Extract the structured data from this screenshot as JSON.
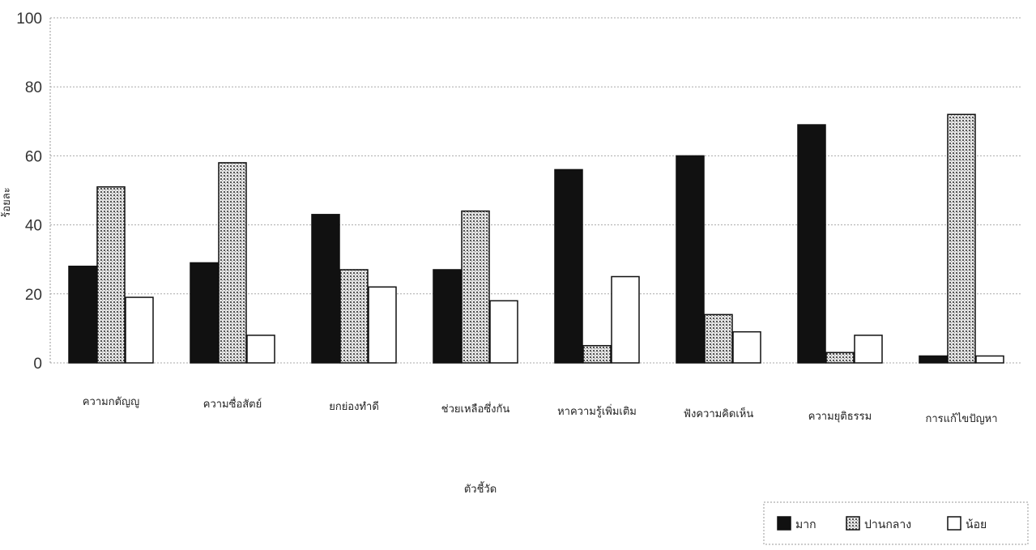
{
  "chart_data": {
    "type": "bar",
    "ylabel": "ร้อยละ",
    "xlabel": "ตัวชี้วัด",
    "ylim": [
      0,
      100
    ],
    "yticks": [
      0,
      20,
      40,
      60,
      80,
      100
    ],
    "grid": true,
    "legend_position": "bottom-right",
    "categories": [
      "ความกตัญญู",
      "ความซื่อสัตย์",
      "ยกย่องทำดี",
      "ช่วยเหลือซึ่งกัน",
      "หาความรู้เพิ่มเติม",
      "ฟังความคิดเห็น",
      "ความยุติธรรม",
      "การแก้ไขปัญหา"
    ],
    "series": [
      {
        "name": "มาก",
        "color": "#111111",
        "fill": "solid",
        "values": [
          28,
          29,
          43,
          27,
          56,
          60,
          69,
          2
        ]
      },
      {
        "name": "ปานกลาง",
        "color": "#bbbbbb",
        "fill": "dotted",
        "values": [
          51,
          58,
          27,
          44,
          5,
          14,
          3,
          72
        ]
      },
      {
        "name": "น้อย",
        "color": "#ffffff",
        "fill": "none",
        "values": [
          19,
          8,
          22,
          18,
          25,
          9,
          8,
          2
        ]
      }
    ]
  }
}
